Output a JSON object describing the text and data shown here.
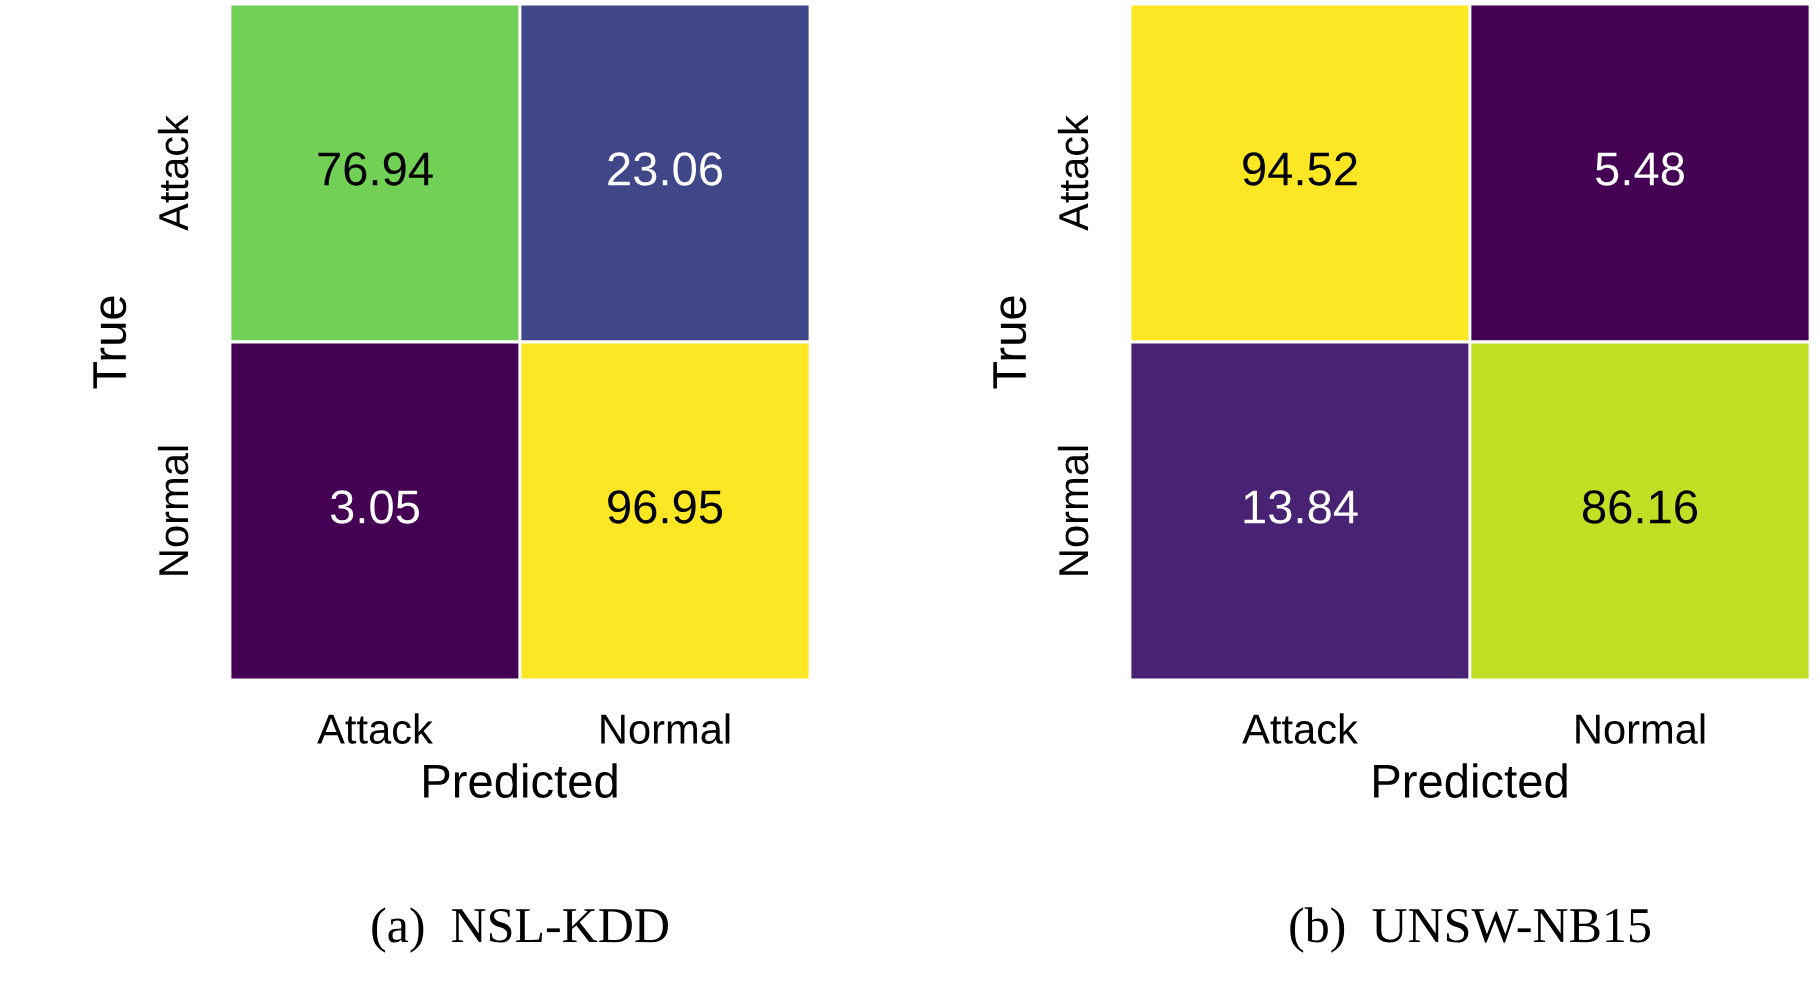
{
  "chart_data": [
    {
      "type": "heatmap",
      "title": "(a)  NSL-KDD",
      "xlabel": "Predicted",
      "ylabel": "True",
      "categories": [
        "Attack",
        "Normal"
      ],
      "y_categories": [
        "Attack",
        "Normal"
      ],
      "cells": [
        [
          76.94,
          23.06
        ],
        [
          3.05,
          96.95
        ]
      ],
      "data_labels": true
    },
    {
      "type": "heatmap",
      "title": "(b)  UNSW-NB15",
      "xlabel": "Predicted",
      "ylabel": "True",
      "categories": [
        "Attack",
        "Normal"
      ],
      "y_categories": [
        "Attack",
        "Normal"
      ],
      "cells": [
        [
          94.52,
          5.48
        ],
        [
          13.84,
          86.16
        ]
      ],
      "data_labels": true
    }
  ]
}
